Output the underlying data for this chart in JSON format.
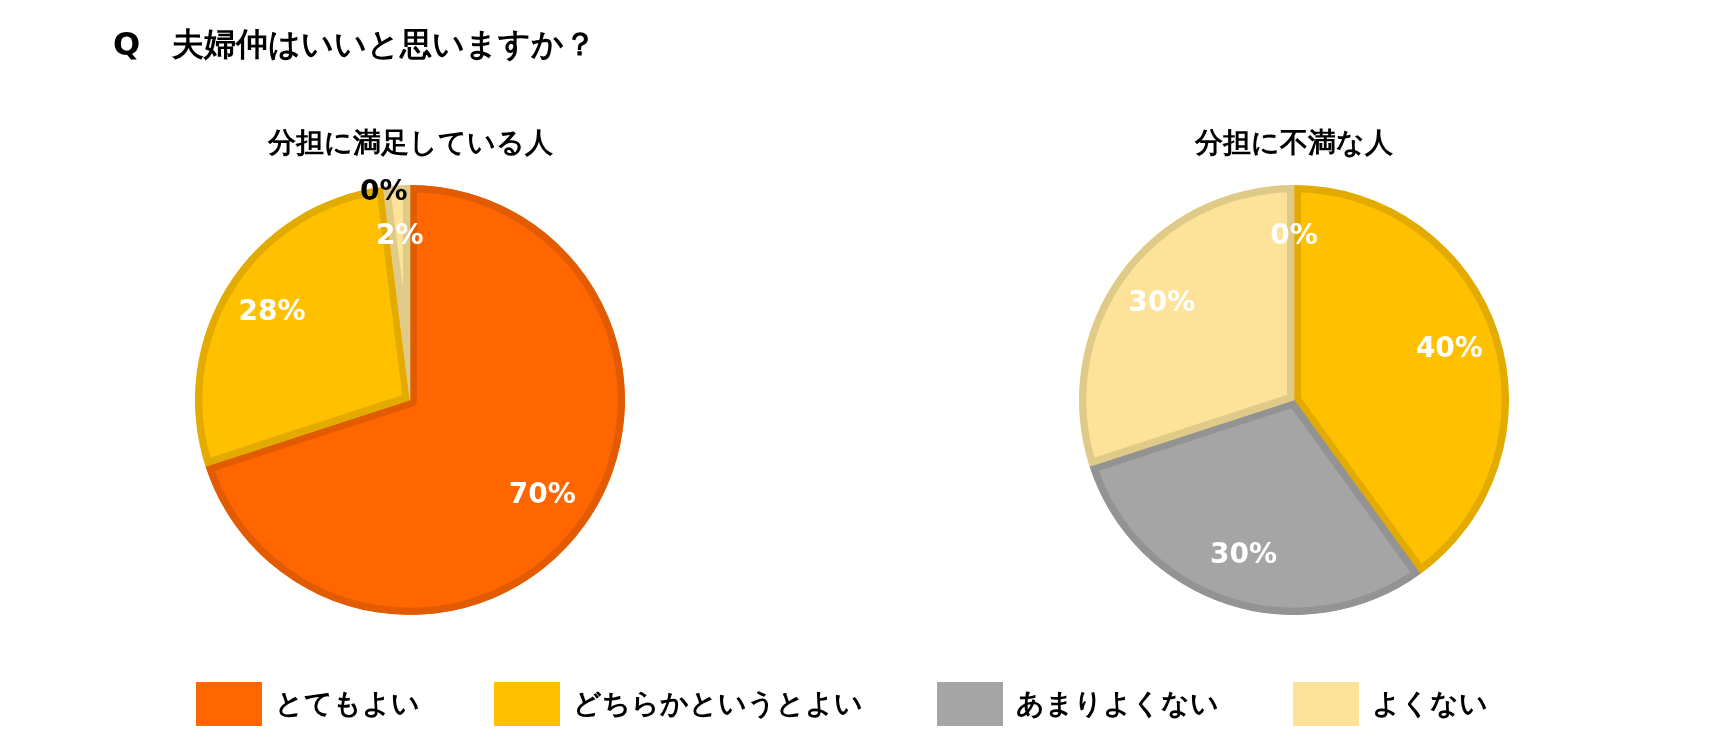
{
  "chart_data": {
    "type": "pie",
    "title": "Q　夫婦仲はいいと思いますか？",
    "categories": [
      "とてもよい",
      "どちらかというとよい",
      "あまりよくない",
      "よくない"
    ],
    "colors": [
      "#ff6600",
      "#ffc000",
      "#a5a5a5",
      "#fce399"
    ],
    "series": [
      {
        "name": "分担に満足している人",
        "values": [
          70,
          28,
          0,
          2
        ],
        "value_labels": [
          "70%",
          "28%",
          "0%",
          "2%"
        ]
      },
      {
        "name": "分担に不満な人",
        "values": [
          0,
          40,
          30,
          30
        ],
        "value_labels": [
          "0%",
          "40%",
          "30%",
          "30%"
        ]
      }
    ],
    "legend": "bottom"
  }
}
